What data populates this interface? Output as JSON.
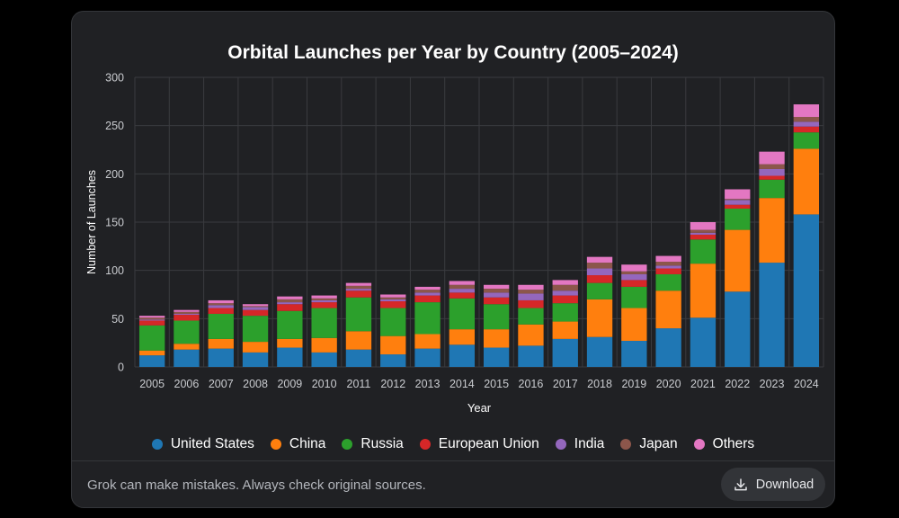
{
  "footer": {
    "note": "Grok can make mistakes. Always check original sources.",
    "download_label": "Download",
    "download_icon": "download-icon"
  },
  "colors": {
    "background": "#000000",
    "card": "#202124",
    "grid": "#3a3b3f",
    "text": "#ffffff",
    "muted": "#b3b6bc"
  },
  "chart_data": {
    "type": "bar",
    "stacked": true,
    "title": "Orbital Launches per Year by Country (2005–2024)",
    "xlabel": "Year",
    "ylabel": "Number of Launches",
    "ylim": [
      0,
      300
    ],
    "yticks": [
      0,
      50,
      100,
      150,
      200,
      250,
      300
    ],
    "grid": true,
    "legend_position": "bottom-center",
    "categories": [
      "2005",
      "2006",
      "2007",
      "2008",
      "2009",
      "2010",
      "2011",
      "2012",
      "2013",
      "2014",
      "2015",
      "2016",
      "2017",
      "2018",
      "2019",
      "2020",
      "2021",
      "2022",
      "2023",
      "2024"
    ],
    "series": [
      {
        "name": "United States",
        "color": "#1f77b4",
        "values": [
          12,
          18,
          19,
          15,
          20,
          15,
          18,
          13,
          19,
          23,
          20,
          22,
          29,
          31,
          27,
          40,
          51,
          78,
          108,
          158
        ]
      },
      {
        "name": "China",
        "color": "#ff7f0e",
        "values": [
          5,
          6,
          10,
          11,
          9,
          15,
          19,
          19,
          15,
          16,
          19,
          22,
          18,
          39,
          34,
          39,
          56,
          64,
          67,
          68
        ]
      },
      {
        "name": "Russia",
        "color": "#2ca02c",
        "values": [
          26,
          24,
          26,
          27,
          29,
          31,
          35,
          29,
          33,
          32,
          26,
          17,
          19,
          17,
          22,
          17,
          25,
          22,
          19,
          17
        ]
      },
      {
        "name": "European Union",
        "color": "#d62728",
        "values": [
          5,
          6,
          6,
          6,
          7,
          6,
          7,
          7,
          7,
          6,
          7,
          8,
          8,
          8,
          7,
          6,
          5,
          4,
          4,
          6
        ]
      },
      {
        "name": "India",
        "color": "#9467bd",
        "values": [
          1,
          1,
          3,
          3,
          2,
          2,
          2,
          2,
          3,
          4,
          5,
          7,
          5,
          7,
          6,
          3,
          2,
          5,
          7,
          5
        ]
      },
      {
        "name": "Japan",
        "color": "#8c564b",
        "values": [
          2,
          2,
          2,
          1,
          3,
          2,
          3,
          2,
          3,
          4,
          4,
          4,
          6,
          6,
          3,
          4,
          3,
          1,
          5,
          5
        ]
      },
      {
        "name": "Others",
        "color": "#e377c2",
        "values": [
          2,
          2,
          3,
          2,
          3,
          3,
          3,
          3,
          3,
          4,
          4,
          5,
          5,
          6,
          7,
          6,
          8,
          10,
          13,
          13
        ]
      }
    ]
  }
}
